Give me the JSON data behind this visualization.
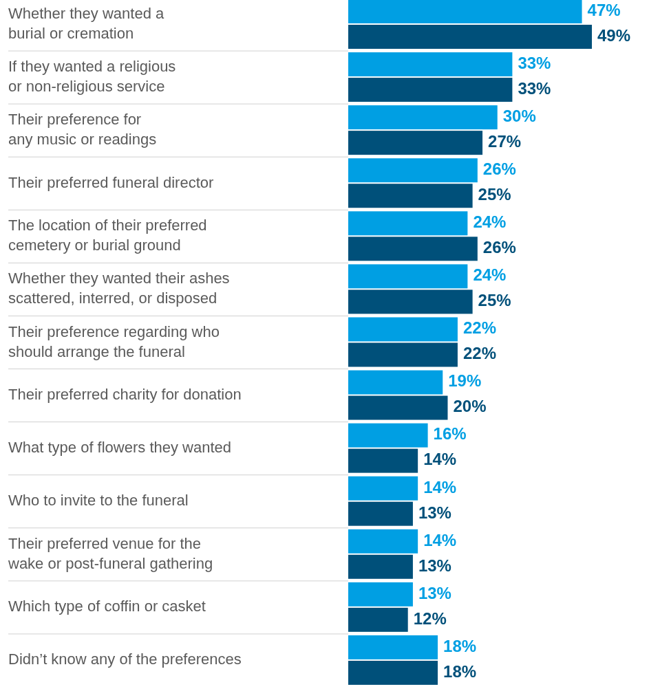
{
  "chart_data": {
    "type": "bar",
    "orientation": "horizontal",
    "categories": [
      "Whether they wanted a burial or cremation",
      "If they wanted a religious or non-religious service",
      "Their preference for any music or readings",
      "Their preferred funeral director",
      "The location of their preferred cemetery or burial ground",
      "Whether they wanted their ashes scattered, interred, or disposed",
      "Their preference regarding who should arrange the funeral",
      "Their preferred charity for donation",
      "What type of flowers they wanted",
      "Who to invite to the funeral",
      "Their preferred venue for the wake or post-funeral gathering",
      "Which type of coffin or casket",
      "Didn’t know any of the preferences"
    ],
    "series": [
      {
        "color": "#009fe3",
        "values": [
          47,
          33,
          30,
          26,
          24,
          24,
          22,
          19,
          16,
          14,
          14,
          13,
          18
        ],
        "value_labels": [
          "47%",
          "33%",
          "30%",
          "26%",
          "24%",
          "24%",
          "22%",
          "19%",
          "16%",
          "14%",
          "14%",
          "13%",
          "18%"
        ]
      },
      {
        "color": "#00507a",
        "values": [
          49,
          33,
          27,
          25,
          26,
          25,
          22,
          20,
          14,
          13,
          13,
          12,
          18
        ],
        "value_labels": [
          "49%",
          "33%",
          "27%",
          "25%",
          "26%",
          "25%",
          "22%",
          "20%",
          "14%",
          "13%",
          "13%",
          "12%",
          "18%"
        ]
      }
    ]
  }
}
